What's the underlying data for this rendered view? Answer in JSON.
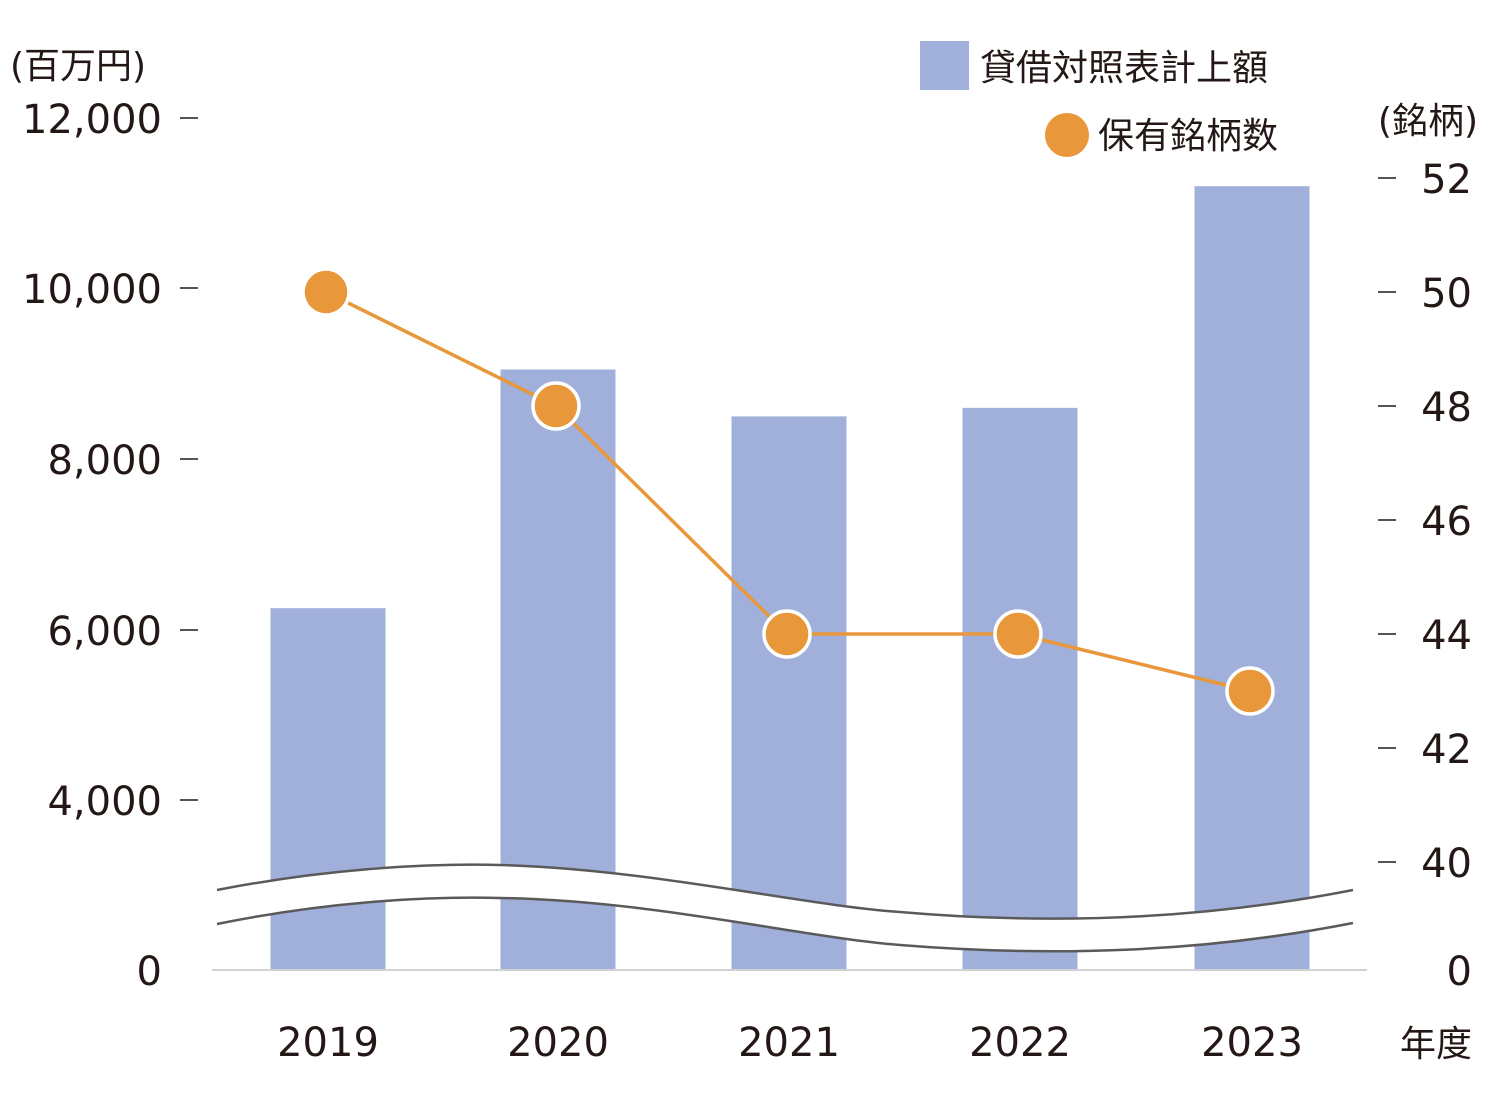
{
  "chart_data": {
    "type": "bar",
    "categories": [
      "2019",
      "2020",
      "2021",
      "2022",
      "2023"
    ],
    "series": [
      {
        "name": "貸借対照表計上額",
        "kind": "bar",
        "axis": "left",
        "color": "#a0b0da",
        "values": [
          6250,
          9050,
          8500,
          8600,
          11200
        ]
      },
      {
        "name": "保有銘柄数",
        "kind": "line",
        "axis": "right",
        "color": "#e8983a",
        "values": [
          50,
          48,
          44,
          44,
          43
        ]
      }
    ],
    "y_left": {
      "unit": "(百万円)",
      "ticks": [
        "12,000",
        "10,000",
        "8,000",
        "6,000",
        "4,000",
        "0"
      ],
      "range": [
        4000,
        12000
      ],
      "broken": true
    },
    "y_right": {
      "unit": "(銘柄)",
      "ticks": [
        "52",
        "50",
        "48",
        "46",
        "44",
        "42",
        "40",
        "0"
      ],
      "range": [
        40,
        52
      ],
      "broken": true
    },
    "xlabel": "年度",
    "legend_position": "top-right"
  }
}
